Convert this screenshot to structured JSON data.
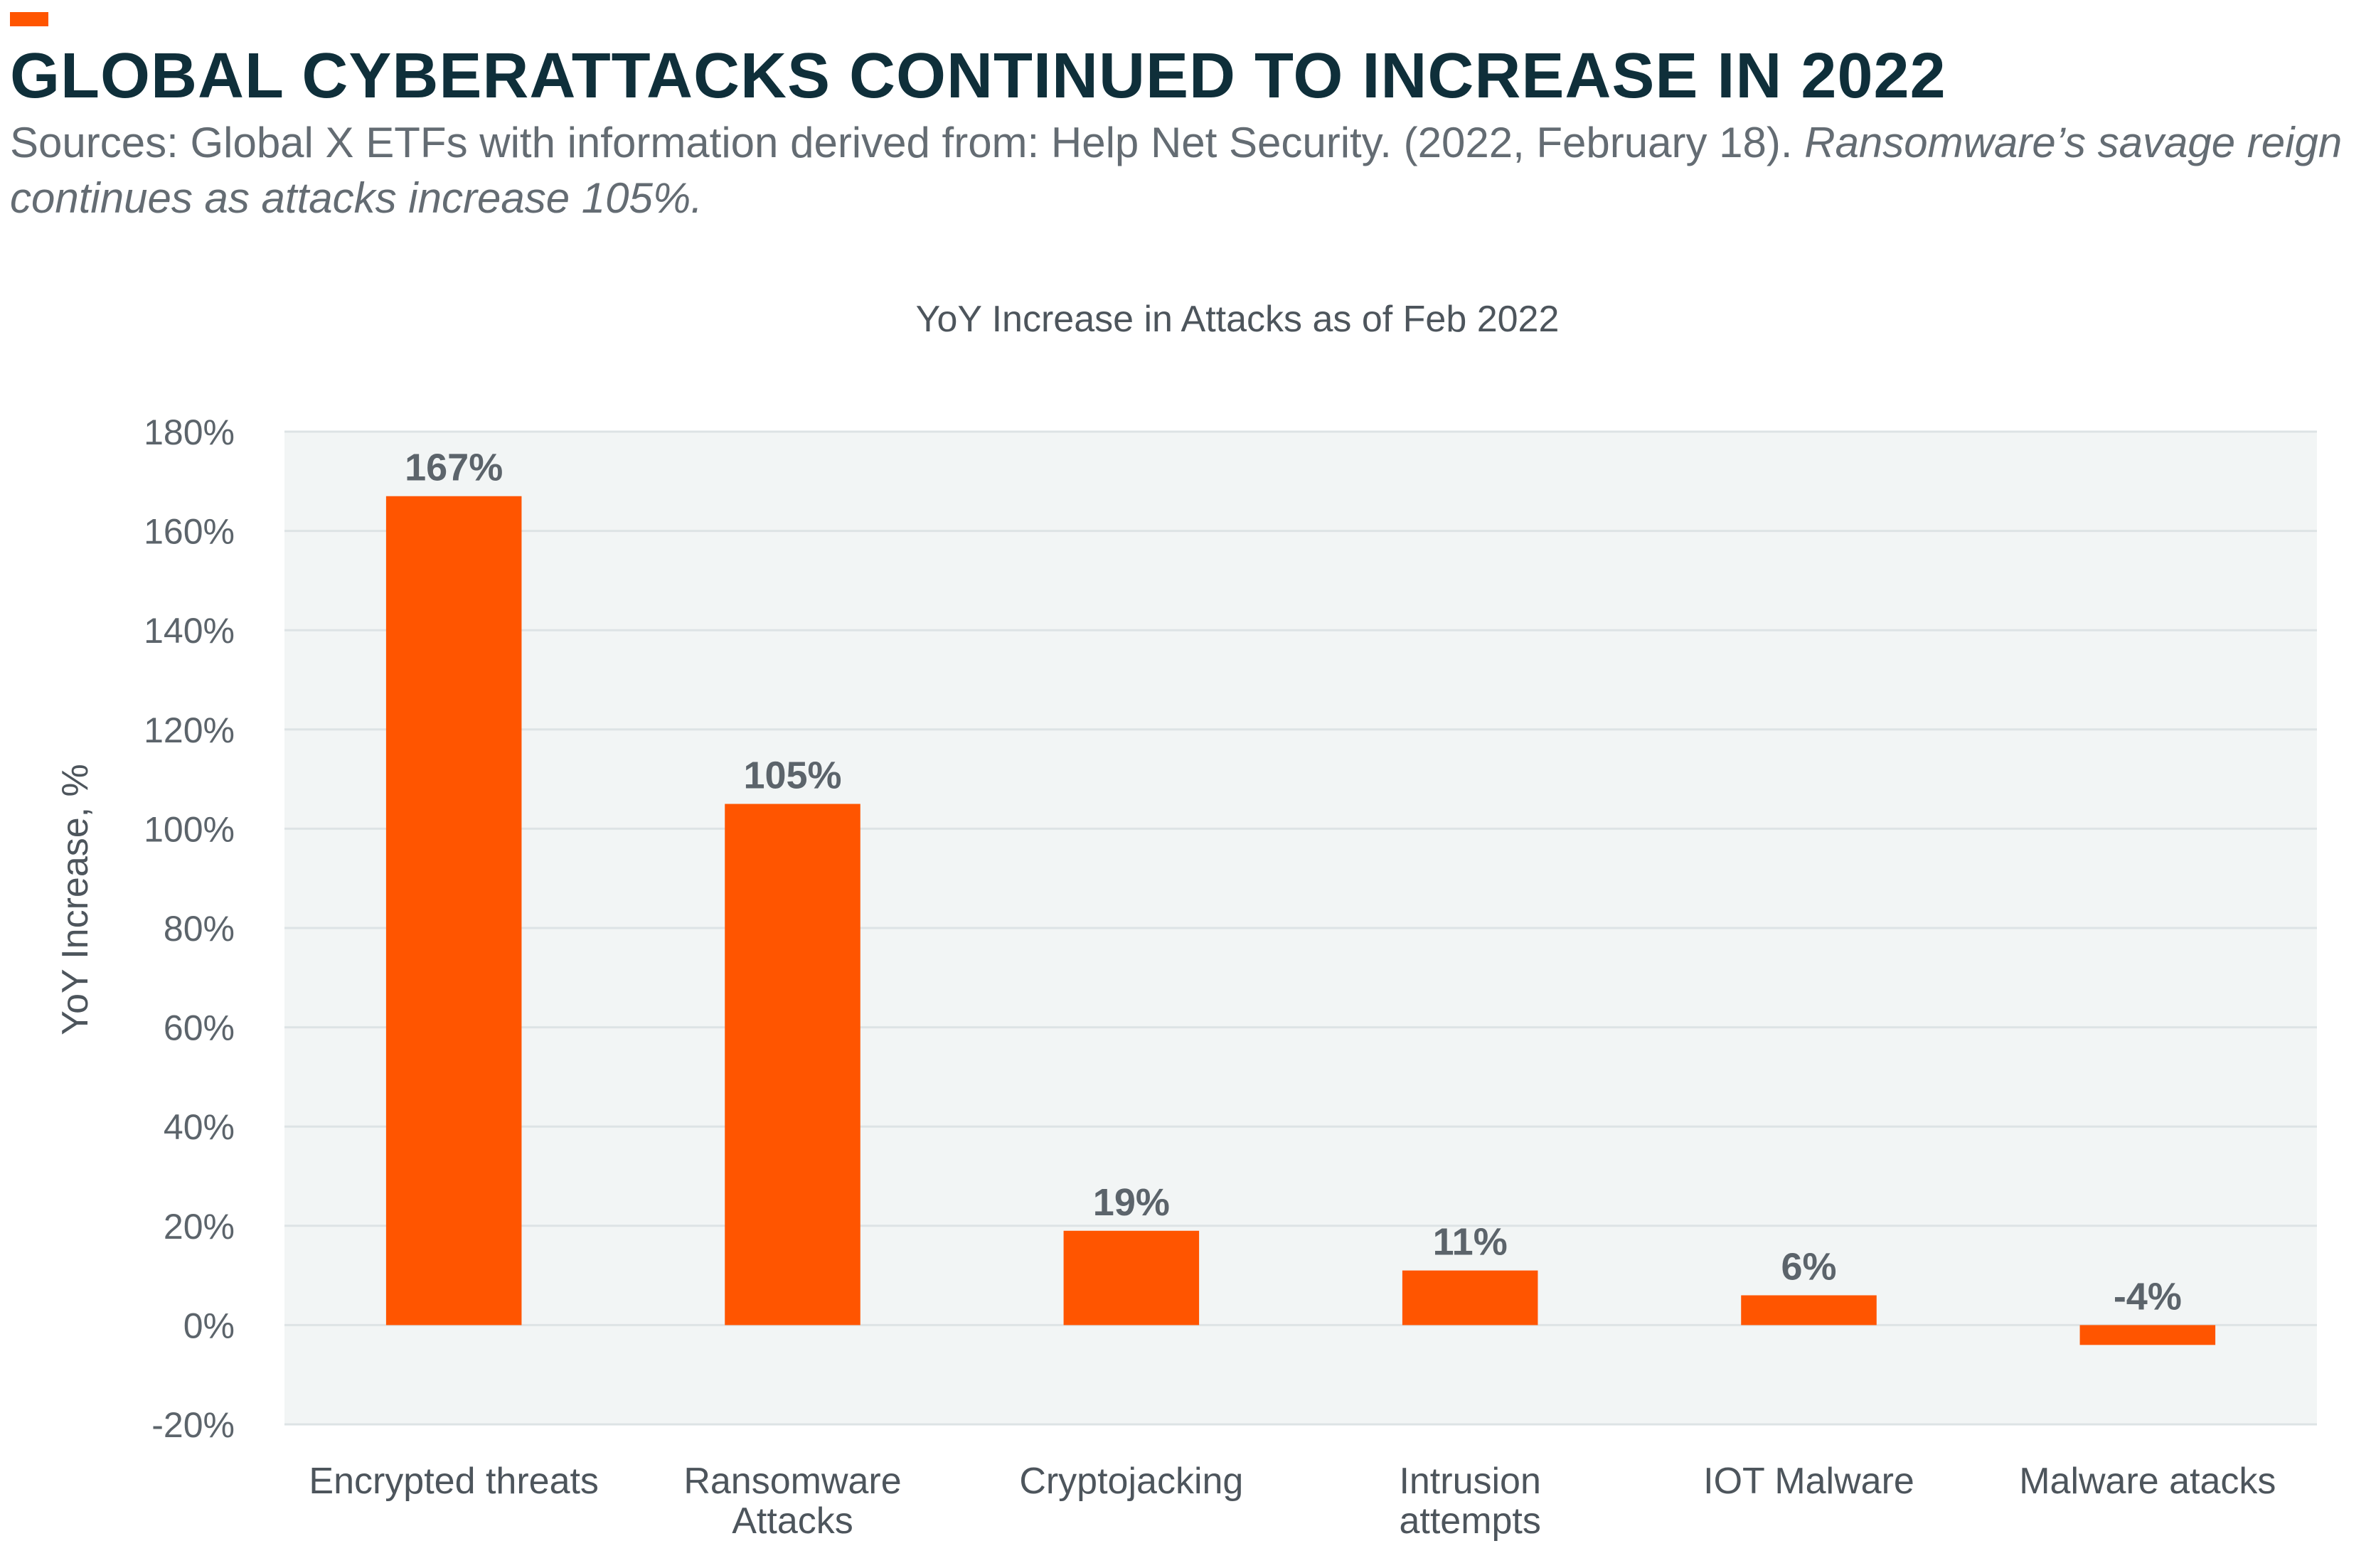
{
  "header": {
    "title": "GLOBAL CYBERATTACKS CONTINUED TO INCREASE IN 2022",
    "source_prefix": "Sources: Global X ETFs with information derived from: Help Net Security. (2022, February 18).",
    "source_italic": "Ransomware’s savage reign continues as attacks increase 105%.",
    "accent_color": "#ff5500"
  },
  "chart_data": {
    "type": "bar",
    "title": "YoY Increase in Attacks as of Feb 2022",
    "xlabel": "",
    "ylabel": "YoY Increase, %",
    "categories": [
      "Encrypted threats",
      "Ransomware Attacks",
      "Cryptojacking",
      "Intrusion attempts",
      "IOT Malware",
      "Malware atacks"
    ],
    "category_lines": [
      [
        "Encrypted threats"
      ],
      [
        "Ransomware",
        "Attacks"
      ],
      [
        "Cryptojacking"
      ],
      [
        "Intrusion",
        "attempts"
      ],
      [
        "IOT Malware"
      ],
      [
        "Malware atacks"
      ]
    ],
    "values": [
      167,
      105,
      19,
      11,
      6,
      -4
    ],
    "data_labels": [
      "167%",
      "105%",
      "19%",
      "11%",
      "6%",
      "-4%"
    ],
    "ylim": [
      -20,
      180
    ],
    "yticks": [
      -20,
      0,
      20,
      40,
      60,
      80,
      100,
      120,
      140,
      160,
      180
    ],
    "ytick_labels": [
      "-20%",
      "0%",
      "20%",
      "40%",
      "60%",
      "80%",
      "100%",
      "120%",
      "140%",
      "160%",
      "180%"
    ],
    "grid": true,
    "bar_color": "#ff5500",
    "plot_background": "#f2f5f5"
  }
}
